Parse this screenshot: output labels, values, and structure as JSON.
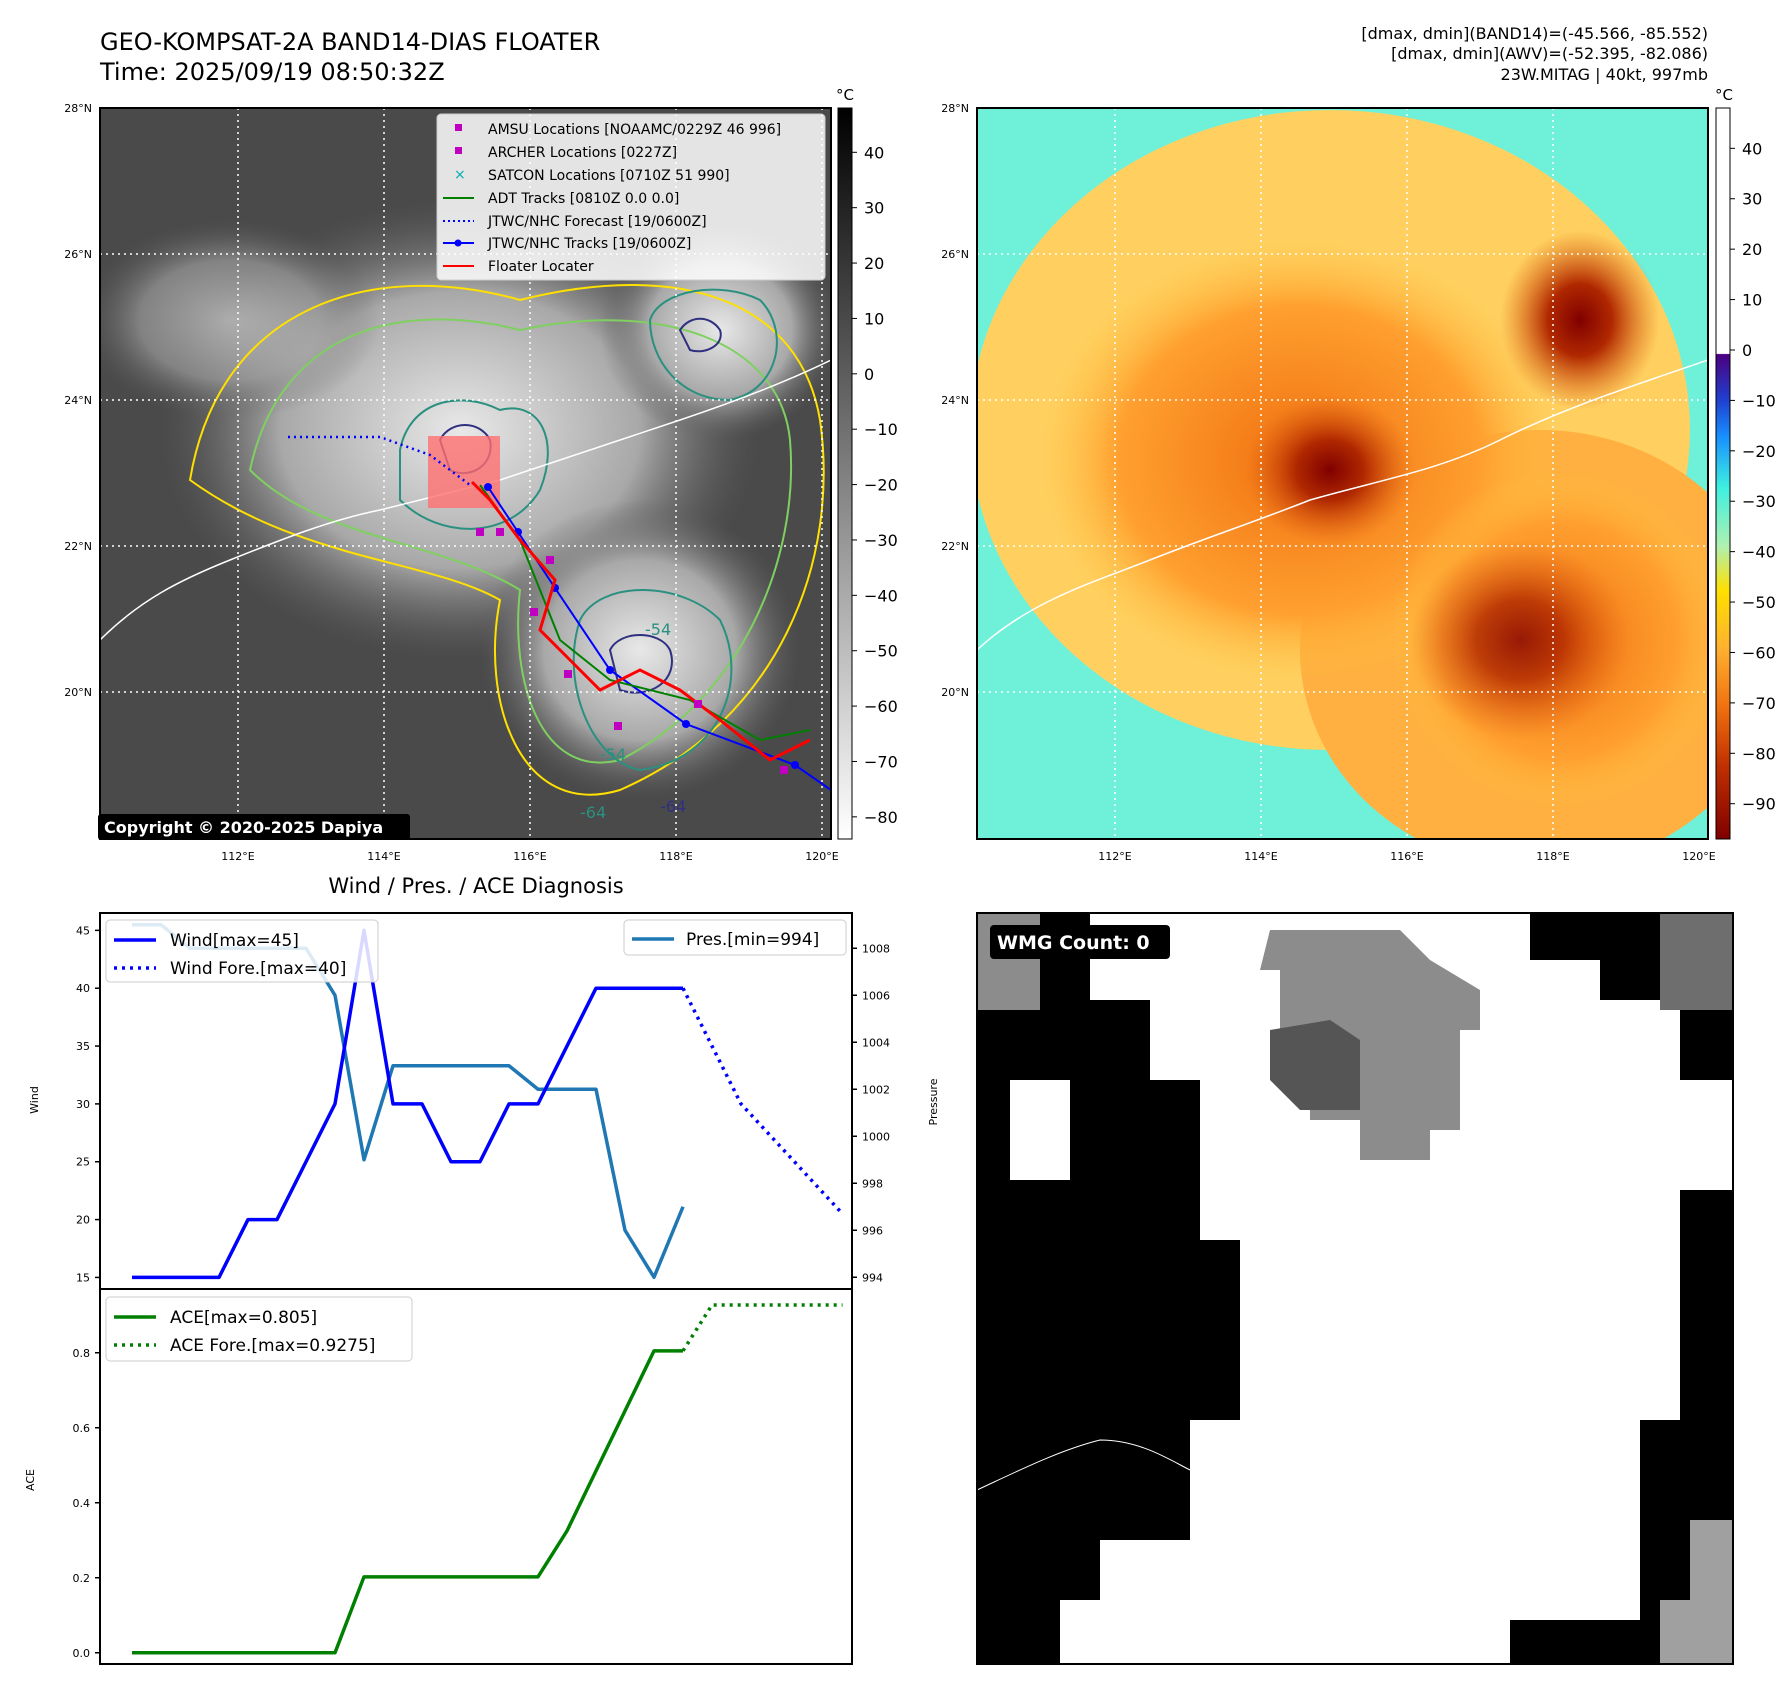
{
  "header": {
    "title_line1": "GEO-KOMPSAT-2A BAND14-DIAS FLOATER",
    "title_line2": "Time: 2025/09/19 08:50:32Z",
    "info_line1": "[dmax, dmin](BAND14)=(-45.566, -85.552)",
    "info_line2": "[dmax, dmin](AWV)=(-52.395, -82.086)",
    "info_line3": "23W.MITAG | 40kt, 997mb"
  },
  "map_axes": {
    "lat_ticks": [
      "28°N",
      "26°N",
      "24°N",
      "22°N",
      "20°N"
    ],
    "lon_ticks": [
      "112°E",
      "114°E",
      "116°E",
      "118°E",
      "120°E"
    ]
  },
  "ir_colorbar": {
    "unit": "°C",
    "ticks": [
      "40",
      "30",
      "20",
      "10",
      "0",
      "−10",
      "−20",
      "−30",
      "−40",
      "−50",
      "−60",
      "−70",
      "−80"
    ]
  },
  "awv_colorbar": {
    "unit": "°C",
    "ticks": [
      "40",
      "30",
      "20",
      "10",
      "0",
      "−10",
      "−20",
      "−30",
      "−40",
      "−50",
      "−60",
      "−70",
      "−80",
      "−90"
    ]
  },
  "legend": {
    "amsu": "AMSU Locations [NOAAMC/0229Z 46 996]",
    "archer": "ARCHER Locations [0227Z]",
    "satcon": "SATCON Locations [0710Z 51 990]",
    "adt": "ADT Tracks [0810Z 0.0 0.0]",
    "forecast": "JTWC/NHC Forecast [19/0600Z]",
    "tracks": "JTWC/NHC Tracks [19/0600Z]",
    "floater": "Floater Locater"
  },
  "copyright": "Copyright © 2020-2025 Dapiya",
  "contour_labels": [
    "-54",
    "-64",
    "-64",
    "-54"
  ],
  "wmg": {
    "label": "WMG Count: 0"
  },
  "colors": {
    "wind": "#0000ff",
    "pressure": "#1f77b4",
    "ace": "#008000",
    "amsu_marker": "#c000c0",
    "satcon_marker": "#00b0b0",
    "floater": "#ff0000"
  },
  "chart_data": [
    {
      "type": "line",
      "title": "Wind / Pres. / ACE Diagnosis",
      "ylabel": "Wind",
      "ylim": [
        14,
        46.5
      ],
      "yticks": [
        "45",
        "40",
        "35",
        "30",
        "25",
        "20",
        "15"
      ],
      "series": [
        {
          "name": "Wind[max=45]",
          "x": [
            0,
            1,
            2,
            3,
            4,
            5,
            6,
            7,
            8,
            9,
            10,
            11,
            12,
            13,
            14,
            15,
            16,
            17,
            18,
            19
          ],
          "values": [
            15,
            15,
            15,
            15,
            20,
            20,
            25,
            30,
            45,
            30,
            30,
            25,
            25,
            30,
            30,
            35,
            40,
            40,
            40,
            40
          ]
        },
        {
          "name": "Wind Fore.[max=40]",
          "style": "dotted",
          "x": [
            19,
            21,
            24.5
          ],
          "values": [
            40,
            30,
            20.5
          ]
        }
      ]
    },
    {
      "type": "line",
      "ylabel": "Pressure",
      "ylim": [
        993.5,
        1009.5
      ],
      "yticks": [
        "1008",
        "1006",
        "1004",
        "1002",
        "1000",
        "998",
        "996",
        "994"
      ],
      "series": [
        {
          "name": "Pres.[min=994]",
          "x": [
            0,
            1,
            2,
            3,
            4,
            5,
            6,
            7,
            8,
            9,
            10,
            11,
            12,
            13,
            14,
            15,
            16,
            17,
            18,
            19
          ],
          "values": [
            1009,
            1009,
            1008,
            1008,
            1008,
            1008,
            1008,
            1006,
            999,
            1003,
            1003,
            1003,
            1003,
            1003,
            1002,
            1002,
            1002,
            996,
            994,
            997
          ]
        }
      ]
    },
    {
      "type": "line",
      "ylabel": "ACE",
      "ylim": [
        -0.03,
        0.97
      ],
      "yticks": [
        "0.8",
        "0.6",
        "0.4",
        "0.2",
        "0.0"
      ],
      "series": [
        {
          "name": "ACE[max=0.805]",
          "x": [
            0,
            1,
            2,
            3,
            4,
            5,
            6,
            7,
            8,
            9,
            10,
            11,
            12,
            13,
            14,
            15,
            16,
            17,
            18,
            19
          ],
          "values": [
            0,
            0,
            0,
            0,
            0,
            0,
            0,
            0,
            0.2025,
            0.2025,
            0.2025,
            0.2025,
            0.2025,
            0.2025,
            0.2025,
            0.325,
            0.485,
            0.645,
            0.805,
            0.805
          ]
        },
        {
          "name": "ACE Fore.[max=0.9275]",
          "style": "dotted",
          "x": [
            19,
            20,
            24.5
          ],
          "values": [
            0.805,
            0.9275,
            0.9275
          ]
        }
      ]
    }
  ]
}
